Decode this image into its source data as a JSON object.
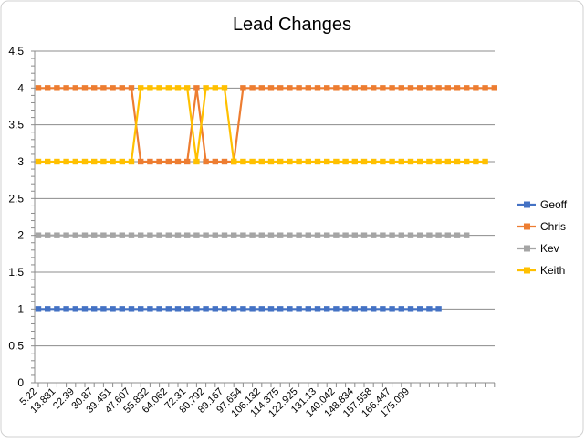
{
  "chart_data": {
    "type": "line",
    "title": "Lead Changes",
    "xlabel": "",
    "ylabel": "",
    "ylim": [
      0,
      4.5
    ],
    "yticks": [
      "0",
      "0.5",
      "1",
      "1.5",
      "2",
      "2.5",
      "3",
      "3.5",
      "4",
      "4.5"
    ],
    "xtick_labels": [
      "5.22",
      "13.881",
      "22.39",
      "30.87",
      "39.451",
      "47.607",
      "55.832",
      "64.062",
      "72.31",
      "80.792",
      "89.167",
      "97.654",
      "106.132",
      "114.375",
      "122.925",
      "131.13",
      "140.042",
      "148.834",
      "157.558",
      "166.447",
      "175.099"
    ],
    "grid": true,
    "legend_position": "right",
    "series": [
      {
        "name": "Geoff",
        "color": "#4472C4",
        "values": [
          1,
          1,
          1,
          1,
          1,
          1,
          1,
          1,
          1,
          1,
          1,
          1,
          1,
          1,
          1,
          1,
          1,
          1,
          1,
          1,
          1,
          1,
          1,
          1,
          1,
          1,
          1,
          1,
          1,
          1,
          1,
          1,
          1,
          1,
          1,
          1,
          1,
          1,
          1,
          1,
          1,
          1,
          1,
          1
        ]
      },
      {
        "name": "Chris",
        "color": "#ED7D31",
        "values": [
          4,
          4,
          4,
          4,
          4,
          4,
          4,
          4,
          4,
          4,
          4,
          3,
          3,
          3,
          3,
          3,
          3,
          4,
          3,
          3,
          3,
          3,
          4,
          4,
          4,
          4,
          4,
          4,
          4,
          4,
          4,
          4,
          4,
          4,
          4,
          4,
          4,
          4,
          4,
          4,
          4,
          4,
          4,
          4,
          4,
          4,
          4,
          4,
          4,
          4
        ]
      },
      {
        "name": "Kev",
        "color": "#A5A5A5",
        "values": [
          2,
          2,
          2,
          2,
          2,
          2,
          2,
          2,
          2,
          2,
          2,
          2,
          2,
          2,
          2,
          2,
          2,
          2,
          2,
          2,
          2,
          2,
          2,
          2,
          2,
          2,
          2,
          2,
          2,
          2,
          2,
          2,
          2,
          2,
          2,
          2,
          2,
          2,
          2,
          2,
          2,
          2,
          2,
          2,
          2,
          2,
          2
        ]
      },
      {
        "name": "Keith",
        "color": "#FFC000",
        "values": [
          3,
          3,
          3,
          3,
          3,
          3,
          3,
          3,
          3,
          3,
          3,
          4,
          4,
          4,
          4,
          4,
          4,
          3,
          4,
          4,
          4,
          3,
          3,
          3,
          3,
          3,
          3,
          3,
          3,
          3,
          3,
          3,
          3,
          3,
          3,
          3,
          3,
          3,
          3,
          3,
          3,
          3,
          3,
          3,
          3,
          3,
          3,
          3,
          3
        ]
      }
    ]
  }
}
